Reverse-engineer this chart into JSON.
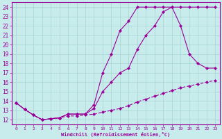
{
  "xlabel": "Windchill (Refroidissement éolien,°C)",
  "background_color": "#c8ecec",
  "grid_color": "#a8d4d4",
  "line_color": "#990099",
  "xlim_min": -0.5,
  "xlim_max": 23.5,
  "ylim_min": 11.5,
  "ylim_max": 24.5,
  "xticks": [
    0,
    1,
    2,
    3,
    4,
    5,
    6,
    7,
    8,
    9,
    10,
    11,
    12,
    13,
    14,
    15,
    16,
    17,
    18,
    19,
    20,
    21,
    22,
    23
  ],
  "yticks": [
    12,
    13,
    14,
    15,
    16,
    17,
    18,
    19,
    20,
    21,
    22,
    23,
    24
  ],
  "line1_x": [
    0,
    1,
    2,
    3,
    4,
    5,
    6,
    7,
    8,
    9,
    10,
    11,
    12,
    13,
    14,
    15,
    16,
    17,
    18,
    19,
    20,
    21,
    22,
    23
  ],
  "line1_y": [
    13.8,
    13.1,
    12.5,
    12.0,
    12.1,
    12.2,
    12.6,
    12.6,
    12.6,
    13.6,
    17.0,
    19.0,
    21.5,
    22.5,
    24.0,
    24.0,
    24.0,
    24.0,
    24.0,
    24.0,
    24.0,
    24.0,
    24.0,
    24.0
  ],
  "line2_x": [
    0,
    1,
    2,
    3,
    4,
    5,
    6,
    7,
    8,
    9,
    10,
    11,
    12,
    13,
    14,
    15,
    16,
    17,
    18,
    19,
    20,
    21,
    22,
    23
  ],
  "line2_y": [
    13.8,
    13.1,
    12.5,
    12.0,
    12.1,
    12.2,
    12.6,
    12.6,
    12.6,
    13.2,
    15.0,
    16.0,
    17.0,
    17.5,
    19.5,
    21.0,
    22.0,
    23.5,
    24.0,
    22.0,
    19.0,
    18.0,
    17.5,
    17.5
  ],
  "line3_x": [
    0,
    1,
    2,
    3,
    4,
    5,
    6,
    7,
    8,
    9,
    10,
    11,
    12,
    13,
    14,
    15,
    16,
    17,
    18,
    19,
    20,
    21,
    22,
    23
  ],
  "line3_y": [
    13.8,
    13.1,
    12.5,
    12.0,
    12.1,
    12.2,
    12.4,
    12.4,
    12.5,
    12.6,
    12.8,
    13.0,
    13.2,
    13.5,
    13.9,
    14.2,
    14.5,
    14.8,
    15.1,
    15.4,
    15.6,
    15.8,
    16.0,
    16.2
  ]
}
